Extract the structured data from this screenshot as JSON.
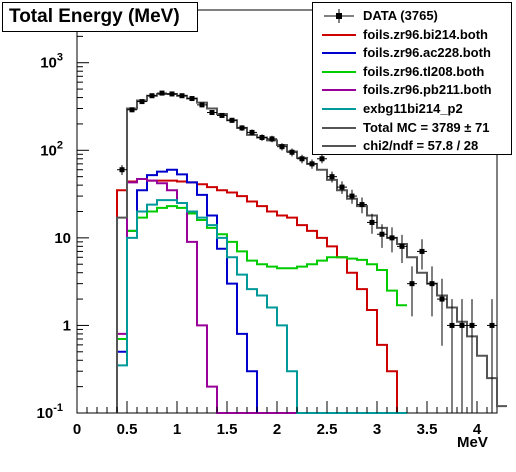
{
  "chart_data": {
    "type": "line",
    "title": "Total Energy (MeV)",
    "xlabel": "MeV",
    "ylabel": "",
    "xlim": [
      0,
      4.2
    ],
    "ylim": [
      0.1,
      4000
    ],
    "y_scale": "log",
    "grid": false,
    "legend_position": "top-right",
    "x_ticks": [
      "0",
      "0.5",
      "1",
      "1.5",
      "2",
      "2.5",
      "3",
      "3.5",
      "4"
    ],
    "y_ticks": [
      {
        "base": "10",
        "exp": "-1",
        "value": 0.1
      },
      {
        "base": "1",
        "exp": "",
        "value": 1
      },
      {
        "base": "10",
        "exp": "",
        "value": 10
      },
      {
        "base": "10",
        "exp": "2",
        "value": 100
      },
      {
        "base": "10",
        "exp": "3",
        "value": 1000
      }
    ],
    "bin_width": 0.1,
    "bin_edges_start": 0.4,
    "data_series": {
      "name": "DATA (3765)",
      "x": [
        0.45,
        0.55,
        0.65,
        0.75,
        0.85,
        0.95,
        1.05,
        1.15,
        1.25,
        1.35,
        1.45,
        1.55,
        1.65,
        1.75,
        1.85,
        1.95,
        2.05,
        2.15,
        2.25,
        2.35,
        2.45,
        2.55,
        2.65,
        2.75,
        2.85,
        2.95,
        3.05,
        3.15,
        3.25,
        3.35,
        3.45,
        3.55,
        3.65,
        3.75,
        3.85,
        3.95,
        4.15
      ],
      "y": [
        60,
        290,
        360,
        420,
        450,
        440,
        420,
        390,
        330,
        270,
        250,
        220,
        180,
        160,
        140,
        135,
        110,
        95,
        80,
        70,
        80,
        50,
        38,
        30,
        24,
        15,
        11,
        10,
        8,
        3,
        7,
        3,
        2,
        1,
        1,
        1,
        1
      ]
    },
    "series": [
      {
        "name": "foils.zr96.bi214.both",
        "color": "#cc0000",
        "values": [
          35,
          44,
          47,
          45,
          45,
          45,
          44,
          43,
          41,
          38,
          35,
          33,
          30,
          26,
          23,
          20,
          18,
          17,
          14,
          12,
          10,
          8,
          6,
          4,
          2.6,
          1.5,
          0.6,
          0.3,
          0.1
        ]
      },
      {
        "name": "foils.zr96.ac228.both",
        "color": "#0000cc",
        "values": [
          0.5,
          12,
          35,
          52,
          57,
          60,
          53,
          43,
          31,
          18,
          7.5,
          3,
          0.8,
          0.3,
          0.1,
          0.08,
          0.08,
          0.08,
          0.08,
          0.08,
          0.08,
          0.08,
          0.08,
          0.08,
          0.08,
          0.08,
          0.08,
          0.08,
          0.08
        ]
      },
      {
        "name": "foils.zr96.tl208.both",
        "color": "#00cc00",
        "values": [
          0.7,
          12,
          17,
          20,
          22,
          23,
          22,
          19,
          16,
          13,
          11,
          9,
          7,
          5.5,
          5,
          4.7,
          4.5,
          4.5,
          4.7,
          5,
          5.5,
          6,
          6,
          5.8,
          5.6,
          5,
          4.3,
          2.5,
          1.7
        ]
      },
      {
        "name": "foils.zr96.pb211.both",
        "color": "#990099",
        "values": [
          0.8,
          43,
          47,
          45,
          42,
          35,
          25,
          9,
          1,
          0.2,
          0.08,
          0.08,
          0.08,
          0.08,
          0.08,
          0.08,
          0.08,
          0.08,
          0.08,
          0.08,
          0.08,
          0.08,
          0.08,
          0.08,
          0.08,
          0.08,
          0.08,
          0.08,
          0.08
        ]
      },
      {
        "name": "exbg11bi214_p2",
        "color": "#009999",
        "values": [
          0.35,
          10,
          20,
          24,
          27,
          27,
          25,
          20,
          17,
          14,
          10,
          6,
          3.8,
          2.6,
          2.2,
          1.6,
          1,
          0.3,
          0.08,
          0.08,
          0.08,
          0.08,
          0.08,
          0.08,
          0.08,
          0.08,
          0.08,
          0.08,
          0.08
        ]
      },
      {
        "name": "Total MC = 3789 ± 71",
        "color": "#555555",
        "values": [
          17,
          300,
          370,
          420,
          440,
          440,
          420,
          390,
          350,
          300,
          260,
          220,
          180,
          150,
          140,
          130,
          115,
          97,
          82,
          70,
          60,
          46,
          35,
          28,
          23,
          18,
          13,
          10,
          8.5,
          6,
          4,
          3,
          2.2,
          1.6,
          1.1,
          0.75,
          0.45,
          0.25,
          0.12
        ]
      }
    ],
    "fit_label": "chi2/ndf = 57.8 / 28"
  }
}
